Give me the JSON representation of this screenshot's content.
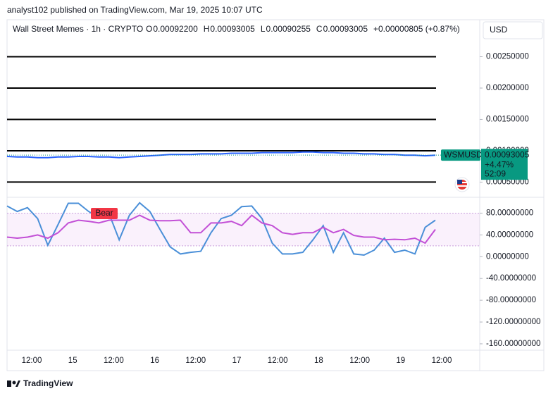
{
  "header": {
    "publisher": "analyst102 published on TradingView.com, Mar 19, 2025 10:07 UTC",
    "symbol": "Wall Street Memes · 1h · CRYPTO",
    "ohlc": [
      {
        "key": "O",
        "value": "0.00092200"
      },
      {
        "key": "H",
        "value": "0.00093005"
      },
      {
        "key": "L",
        "value": "0.00090255"
      },
      {
        "key": "C",
        "value": "0.00093005"
      }
    ],
    "change": "+0.00000805 (+0.87%)",
    "currency": "USD"
  },
  "chart_data": [
    {
      "type": "line",
      "series": [
        {
          "name": "WSMUSD",
          "color": "#2962ff",
          "values": [
            0.00091,
            0.0009,
            0.0009,
            0.00089,
            0.00089,
            0.0009,
            0.0009,
            0.00091,
            0.00091,
            0.0009,
            0.0009,
            0.00089,
            0.0009,
            0.00091,
            0.00092,
            0.00093,
            0.00094,
            0.00094,
            0.00094,
            0.00095,
            0.00095,
            0.00095,
            0.00096,
            0.00096,
            0.00096,
            0.00097,
            0.00097,
            0.00097,
            0.00097,
            0.00098,
            0.00098,
            0.00097,
            0.00097,
            0.00096,
            0.00096,
            0.00095,
            0.00095,
            0.00094,
            0.00094,
            0.00093,
            0.00093,
            0.00092,
            0.00093
          ]
        }
      ],
      "ylim": [
        0.00028,
        0.00309
      ],
      "yticks": [
        {
          "value": 0.0025,
          "label": "0.00250000"
        },
        {
          "value": 0.002,
          "label": "0.00200000"
        },
        {
          "value": 0.0015,
          "label": "0.00150000"
        },
        {
          "value": 0.001,
          "label": "0.00100000"
        },
        {
          "value": 0.0005,
          "label": "0.00050000"
        }
      ],
      "levels": [
        0.0025,
        0.002,
        0.0015,
        0.001,
        0.0005
      ],
      "last": 0.00093005,
      "last_change": "+4.47%",
      "countdown": "52:09"
    },
    {
      "type": "line",
      "series": [
        {
          "color": "#4a8fd8",
          "values": [
            93,
            83,
            90,
            70,
            21,
            59,
            98,
            98,
            83,
            72,
            79,
            31,
            76,
            99,
            83,
            50,
            18,
            5,
            8,
            10,
            44,
            70,
            76,
            92,
            93,
            70,
            25,
            5,
            5,
            8,
            31,
            57,
            8,
            44,
            5,
            3,
            12,
            34,
            8,
            12,
            5,
            54,
            67
          ]
        },
        {
          "color": "#c24fd6",
          "values": [
            36,
            34,
            36,
            40,
            34,
            44,
            62,
            67,
            65,
            62,
            67,
            67,
            67,
            76,
            67,
            66,
            66,
            67,
            44,
            44,
            62,
            62,
            65,
            57,
            76,
            62,
            57,
            44,
            41,
            44,
            44,
            54,
            44,
            50,
            39,
            36,
            36,
            31,
            32,
            31,
            34,
            25,
            50
          ]
        }
      ],
      "ylim": [
        -173,
        100
      ],
      "yticks": [
        {
          "value": 80,
          "label": "80.00000000"
        },
        {
          "value": 40,
          "label": "40.00000000"
        },
        {
          "value": 0,
          "label": "0.00000000"
        },
        {
          "value": -40,
          "label": "-40.00000000"
        },
        {
          "value": -80,
          "label": "-80.00000000"
        },
        {
          "value": -120,
          "label": "-120.00000000"
        },
        {
          "value": -160,
          "label": "-160.00000000"
        }
      ],
      "band": [
        80,
        20
      ],
      "annotation": "Bear"
    }
  ],
  "x_labels": [
    "12:00",
    "15",
    "12:00",
    "16",
    "12:00",
    "17",
    "12:00",
    "18",
    "12:00",
    "19",
    "12:00"
  ],
  "footer": "TradingView"
}
